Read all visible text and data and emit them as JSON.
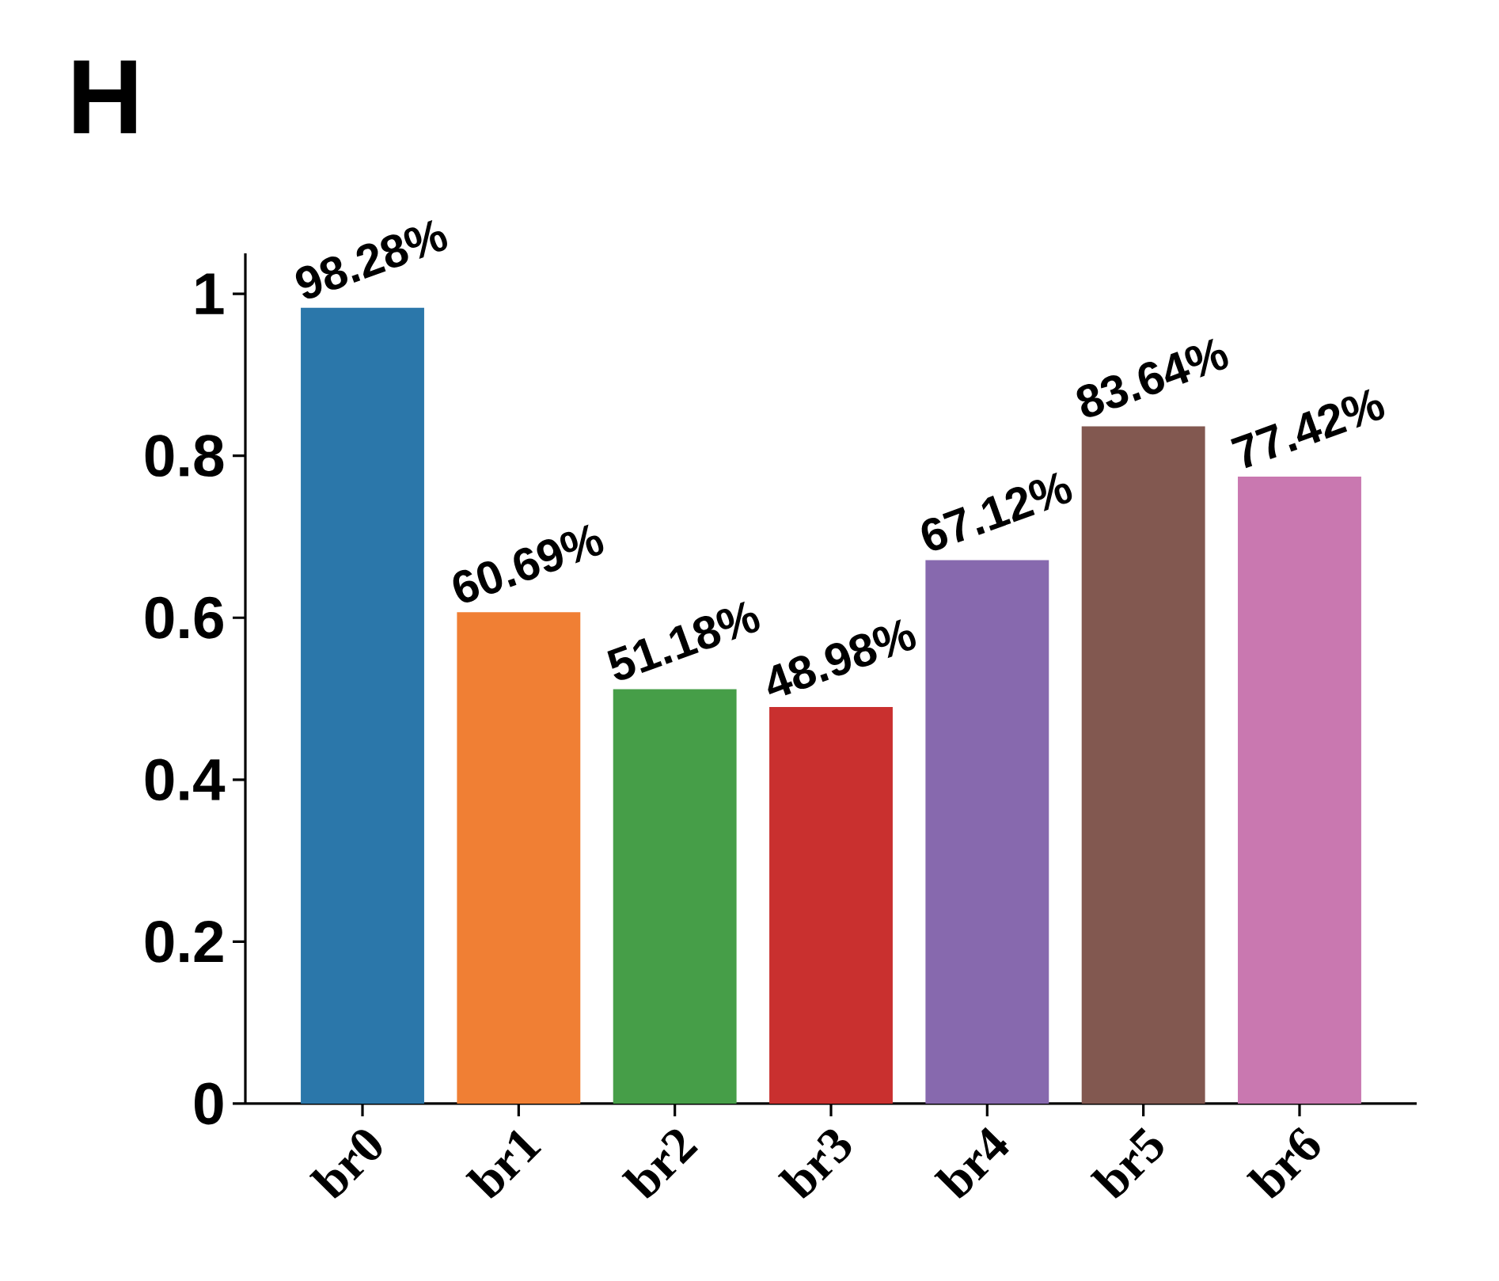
{
  "chart_data": {
    "type": "bar",
    "title": "H",
    "categories": [
      "br0",
      "br1",
      "br2",
      "br3",
      "br4",
      "br5",
      "br6"
    ],
    "values": [
      0.9828,
      0.6069,
      0.5118,
      0.4898,
      0.6712,
      0.8364,
      0.7742
    ],
    "value_labels": [
      "98.28%",
      "60.69%",
      "51.18%",
      "48.98%",
      "67.12%",
      "83.64%",
      "77.42%"
    ],
    "colors": [
      "#2b77aa",
      "#f07f34",
      "#469e48",
      "#c9302f",
      "#8769ae",
      "#825850",
      "#c978b0"
    ],
    "ylim": [
      0,
      1.05
    ],
    "yticks": [
      0,
      0.2,
      0.4,
      0.6,
      0.8,
      1
    ]
  }
}
